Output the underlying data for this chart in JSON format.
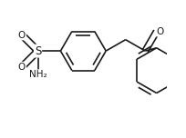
{
  "bg_color": "#ffffff",
  "line_color": "#1a1a1a",
  "line_width": 1.2,
  "font_size": 7.5,
  "figsize": [
    2.05,
    1.52
  ],
  "dpi": 100,
  "xlim": [
    -1.0,
    5.5
  ],
  "ylim": [
    -3.8,
    2.2
  ]
}
